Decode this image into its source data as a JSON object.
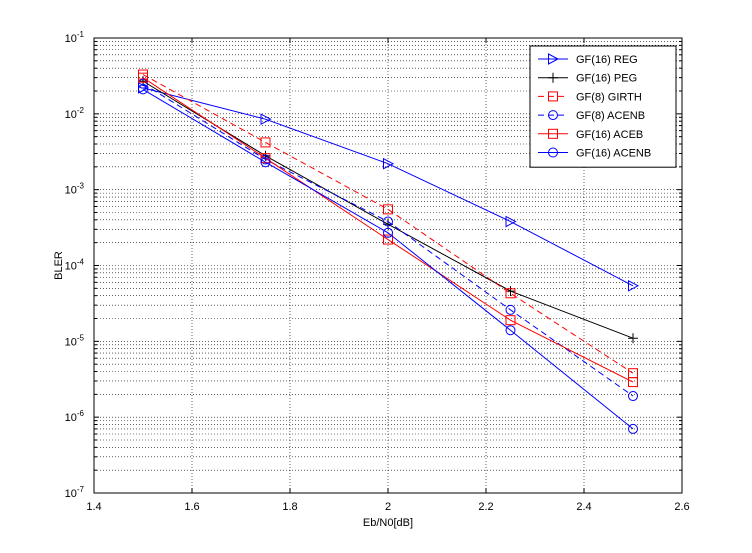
{
  "chart_data": {
    "type": "line",
    "title": "",
    "xlabel": "Eb/N0[dB]",
    "ylabel": "BLER",
    "xlim": [
      1.4,
      2.6
    ],
    "ylim": [
      1e-07,
      0.1
    ],
    "yscale": "log",
    "grid": "on (major and minor, dotted)",
    "legend_location": "top-right",
    "x_ticks": [
      "1.4",
      "1.6",
      "1.8",
      "2",
      "2.2",
      "2.4",
      "2.6"
    ],
    "y_ticks": [
      {
        "base": "10",
        "exp": "-7"
      },
      {
        "base": "10",
        "exp": "-6"
      },
      {
        "base": "10",
        "exp": "-5"
      },
      {
        "base": "10",
        "exp": "-4"
      },
      {
        "base": "10",
        "exp": "-3"
      },
      {
        "base": "10",
        "exp": "-2"
      },
      {
        "base": "10",
        "exp": "-1"
      }
    ],
    "x": [
      1.5,
      1.75,
      2.0,
      2.25,
      2.5
    ],
    "series": [
      {
        "name": "GF(16) REG",
        "color": "#0000ff",
        "dash": "solid",
        "marker": "triangle-right",
        "values": [
          0.022,
          0.0085,
          0.0022,
          0.00038,
          5.4e-05
        ]
      },
      {
        "name": "GF(16) PEG",
        "color": "#000000",
        "dash": "solid",
        "marker": "plus",
        "values": [
          0.027,
          0.0028,
          0.00035,
          4.6e-05,
          1.1e-05
        ]
      },
      {
        "name": "GF(8) GIRTH",
        "color": "#ff0000",
        "dash": "dashed",
        "marker": "square",
        "values": [
          0.033,
          0.0042,
          0.00055,
          4.3e-05,
          3.8e-06
        ]
      },
      {
        "name": "GF(8) ACENB",
        "color": "#0000ff",
        "dash": "dashed",
        "marker": "circle",
        "values": [
          0.025,
          0.0025,
          0.00038,
          2.6e-05,
          1.9e-06
        ]
      },
      {
        "name": "GF(16) ACEB",
        "color": "#ff0000",
        "dash": "solid",
        "marker": "square",
        "values": [
          0.03,
          0.0026,
          0.00022,
          1.9e-05,
          2.9e-06
        ]
      },
      {
        "name": "GF(16) ACENB",
        "color": "#0000ff",
        "dash": "solid",
        "marker": "circle",
        "values": [
          0.021,
          0.0023,
          0.00027,
          1.4e-05,
          7e-07
        ]
      }
    ]
  }
}
